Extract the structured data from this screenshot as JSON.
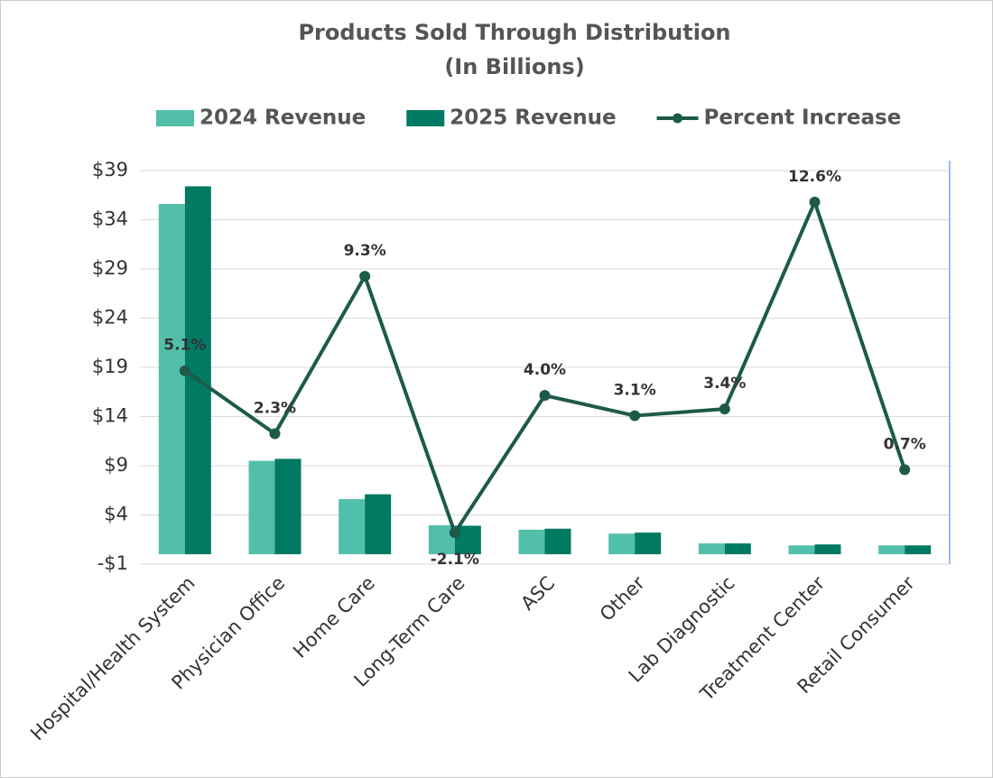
{
  "chart_data": {
    "type": "bar-line",
    "title": "Products Sold Through Distribution",
    "subtitle": "(In Billions)",
    "categories": [
      "Hospital/Health System",
      "Physician Office",
      "Home Care",
      "Long-Term Care",
      "ASC",
      "Other",
      "Lab Diagnostic",
      "Treatment Center",
      "Retail Consumer"
    ],
    "series": [
      {
        "name": "2024 Revenue",
        "color": "#52bfaa",
        "values": [
          35.6,
          9.5,
          5.6,
          2.95,
          2.5,
          2.1,
          1.1,
          0.9,
          0.9
        ]
      },
      {
        "name": "2025 Revenue",
        "color": "#007a63",
        "values": [
          37.4,
          9.7,
          6.1,
          2.9,
          2.6,
          2.2,
          1.1,
          1.0,
          0.9
        ]
      },
      {
        "name": "Percent Increase",
        "color": "#1d5a4a",
        "axis": "y2",
        "values": [
          5.1,
          2.3,
          9.3,
          -2.1,
          4.0,
          3.1,
          3.4,
          12.6,
          0.7
        ],
        "value_labels": [
          "5.1%",
          "2.3%",
          "9.3%",
          "-2.1%",
          "4.0%",
          "3.1%",
          "3.4%",
          "12.6%",
          "0.7%"
        ]
      }
    ],
    "ylim": [
      -1,
      39
    ],
    "yticks": [
      {
        "value": -1,
        "label": "-$1"
      },
      {
        "value": 4,
        "label": "$4"
      },
      {
        "value": 9,
        "label": "$9"
      },
      {
        "value": 14,
        "label": "$14"
      },
      {
        "value": 19,
        "label": "$19"
      },
      {
        "value": 24,
        "label": "$24"
      },
      {
        "value": 29,
        "label": "$29"
      },
      {
        "value": 34,
        "label": "$34"
      },
      {
        "value": 39,
        "label": "$39"
      }
    ],
    "y2lim": [
      -3.5,
      14
    ],
    "grid": true
  }
}
